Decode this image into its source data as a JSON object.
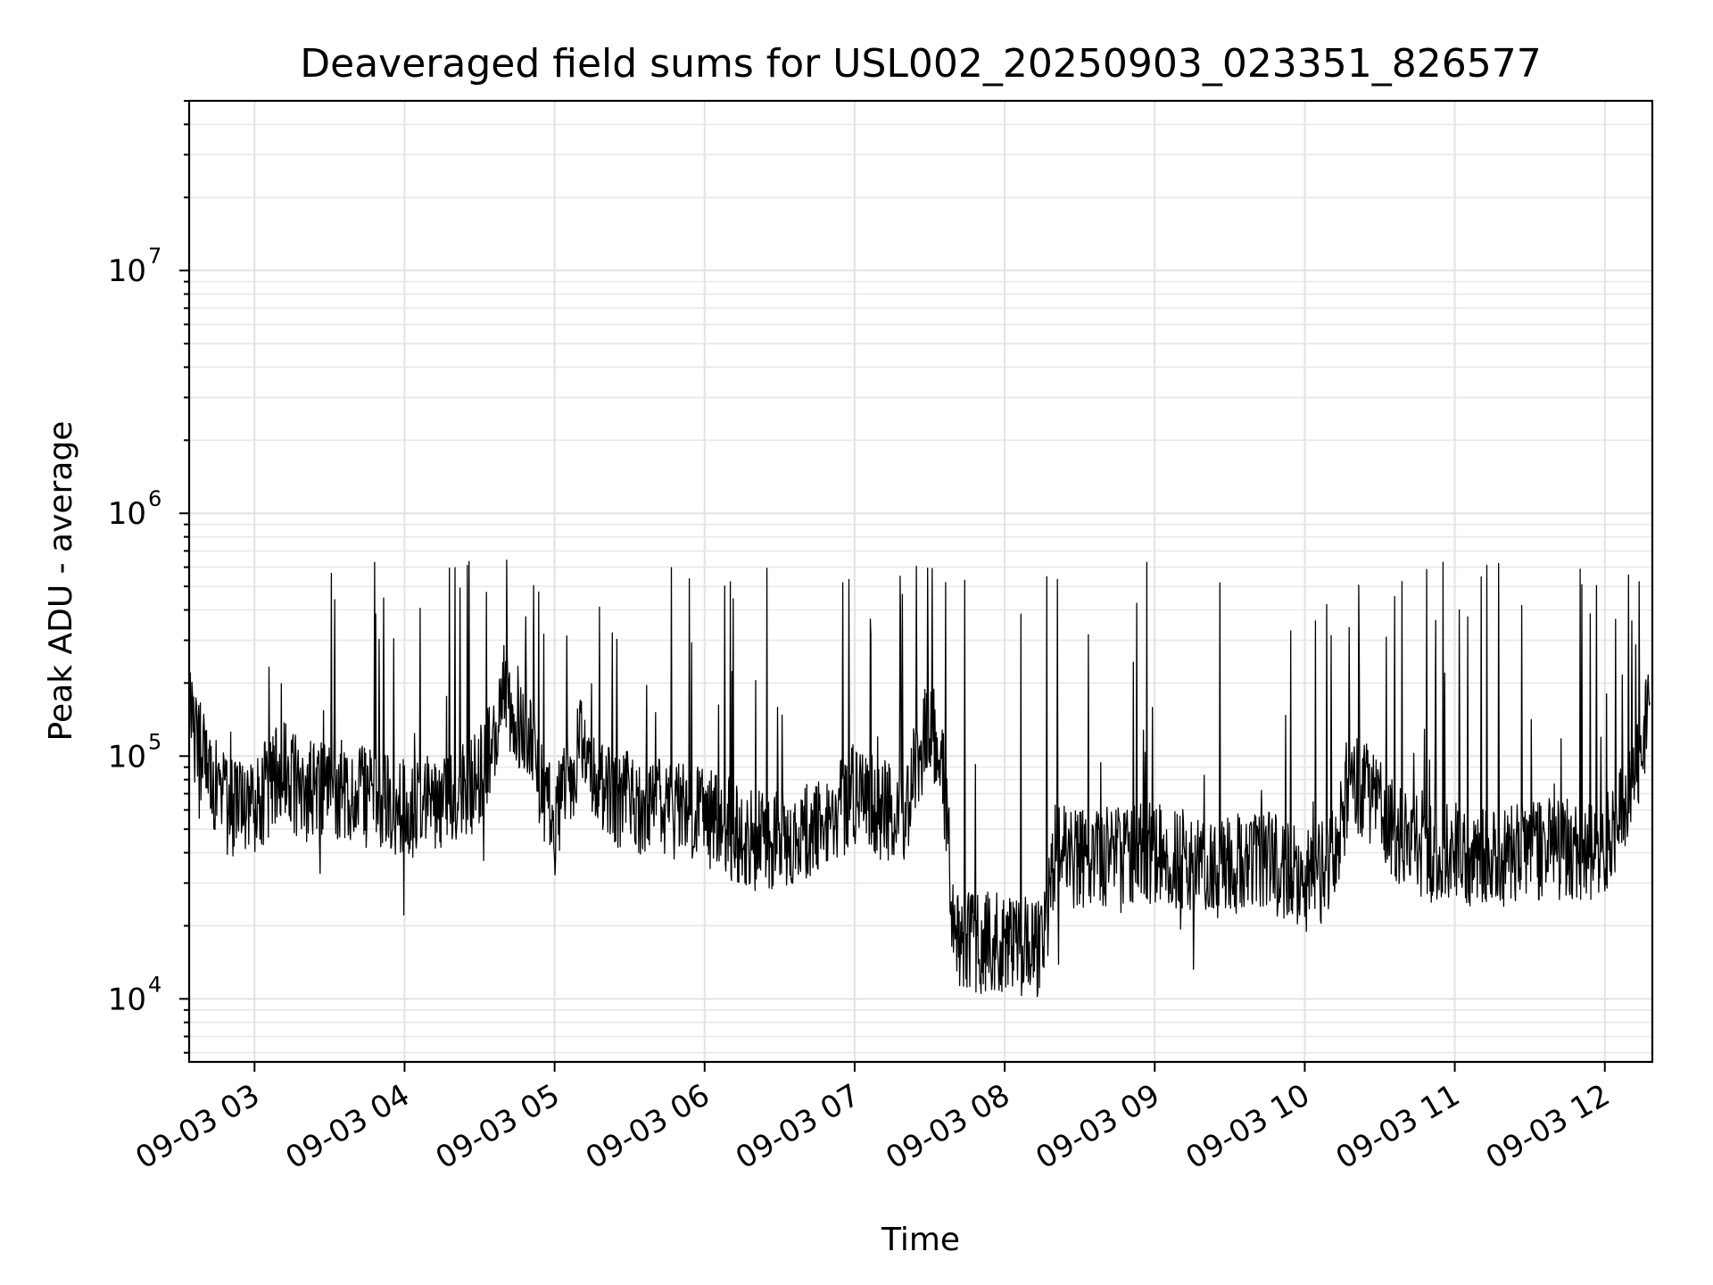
{
  "chart_data": {
    "type": "line",
    "title": "Deaveraged field sums for USL002_20250903_023351_826577",
    "xlabel": "Time",
    "ylabel": "Peak ADU - average",
    "y_scale": "log",
    "ylim": [
      5500,
      50000000
    ],
    "xlim": [
      "2025-09-03T02:33:51",
      "2025-09-03T12:19:00"
    ],
    "grid": true,
    "legend": "none",
    "line_color": "#000000",
    "x_ticks": [
      {
        "value": "2025-09-03T03:00",
        "label": "09-03 03"
      },
      {
        "value": "2025-09-03T04:00",
        "label": "09-03 04"
      },
      {
        "value": "2025-09-03T05:00",
        "label": "09-03 05"
      },
      {
        "value": "2025-09-03T06:00",
        "label": "09-03 06"
      },
      {
        "value": "2025-09-03T07:00",
        "label": "09-03 07"
      },
      {
        "value": "2025-09-03T08:00",
        "label": "09-03 08"
      },
      {
        "value": "2025-09-03T09:00",
        "label": "09-03 09"
      },
      {
        "value": "2025-09-03T10:00",
        "label": "09-03 10"
      },
      {
        "value": "2025-09-03T11:00",
        "label": "09-03 11"
      },
      {
        "value": "2025-09-03T12:00",
        "label": "09-03 12"
      }
    ],
    "y_ticks": [
      {
        "value": 10000,
        "base": "10",
        "exp": "4"
      },
      {
        "value": 100000,
        "base": "10",
        "exp": "5"
      },
      {
        "value": 1000000,
        "base": "10",
        "exp": "6"
      },
      {
        "value": 10000000,
        "base": "10",
        "exp": "7"
      }
    ],
    "series": [
      {
        "x": [
          "2025-09-03T02:34",
          "2025-09-03T02:40",
          "2025-09-03T02:50",
          "2025-09-03T03:00",
          "2025-09-03T03:10",
          "2025-09-03T03:20",
          "2025-09-03T03:30",
          "2025-09-03T03:40",
          "2025-09-03T03:50",
          "2025-09-03T04:00",
          "2025-09-03T04:10",
          "2025-09-03T04:20",
          "2025-09-03T04:30",
          "2025-09-03T04:40",
          "2025-09-03T04:50",
          "2025-09-03T05:00",
          "2025-09-03T05:10",
          "2025-09-03T05:20",
          "2025-09-03T05:30",
          "2025-09-03T05:40",
          "2025-09-03T05:50",
          "2025-09-03T06:00",
          "2025-09-03T06:10",
          "2025-09-03T06:20",
          "2025-09-03T06:30",
          "2025-09-03T06:40",
          "2025-09-03T06:50",
          "2025-09-03T07:00",
          "2025-09-03T07:10",
          "2025-09-03T07:20",
          "2025-09-03T07:30",
          "2025-09-03T07:35",
          "2025-09-03T07:40",
          "2025-09-03T07:50",
          "2025-09-03T08:00",
          "2025-09-03T08:10",
          "2025-09-03T08:15",
          "2025-09-03T08:20",
          "2025-09-03T08:30",
          "2025-09-03T08:40",
          "2025-09-03T08:50",
          "2025-09-03T09:00",
          "2025-09-03T09:10",
          "2025-09-03T09:20",
          "2025-09-03T09:30",
          "2025-09-03T09:40",
          "2025-09-03T09:50",
          "2025-09-03T10:00",
          "2025-09-03T10:10",
          "2025-09-03T10:20",
          "2025-09-03T10:30",
          "2025-09-03T10:40",
          "2025-09-03T10:50",
          "2025-09-03T11:00",
          "2025-09-03T11:10",
          "2025-09-03T11:20",
          "2025-09-03T11:30",
          "2025-09-03T11:40",
          "2025-09-03T11:50",
          "2025-09-03T12:00",
          "2025-09-03T12:10",
          "2025-09-03T12:18"
        ],
        "values": [
          150000,
          90000,
          60000,
          60000,
          90000,
          70000,
          75000,
          70000,
          65000,
          60000,
          65000,
          70000,
          80000,
          180000,
          120000,
          50000,
          110000,
          70000,
          65000,
          60000,
          60000,
          55000,
          50000,
          45000,
          45000,
          50000,
          55000,
          70000,
          60000,
          60000,
          140000,
          100000,
          18000,
          17000,
          17000,
          16000,
          16000,
          40000,
          38000,
          38000,
          40000,
          40000,
          38000,
          35000,
          35000,
          38000,
          35000,
          30000,
          35000,
          80000,
          60000,
          45000,
          40000,
          40000,
          38000,
          38000,
          40000,
          42000,
          40000,
          42000,
          65000,
          150000
        ]
      }
    ]
  }
}
